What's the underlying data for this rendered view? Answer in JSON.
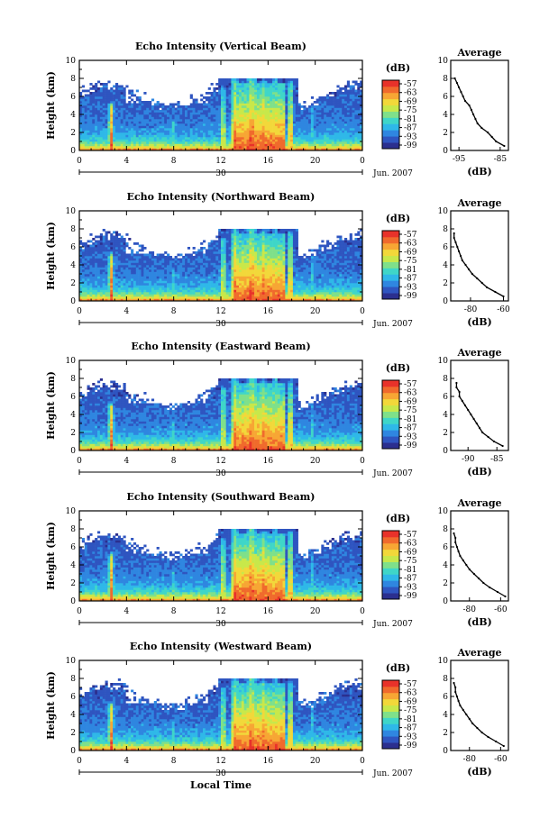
{
  "chart_data": [
    {
      "type": "heatmap",
      "title": "Echo Intensity (Vertical Beam)",
      "ylabel": "Height (km)",
      "ylim": [
        0,
        10
      ],
      "yticks": [
        "0",
        "2",
        "4",
        "6",
        "8",
        "10"
      ],
      "xticks": [
        "0",
        "4",
        "8",
        "12",
        "16",
        "20",
        "0"
      ],
      "date_day": "30",
      "date_month": "Jun. 2007",
      "colorbar": {
        "unit": "(dB)",
        "ticks": [
          "-57",
          "-63",
          "-69",
          "-75",
          "-81",
          "-87",
          "-93",
          "-99"
        ]
      },
      "profile": {
        "title": "Average",
        "xlabel": "(dB)",
        "xticks": [
          "-95",
          "-85"
        ],
        "xlim": [
          -97,
          -83
        ],
        "yticks": [
          "0",
          "2",
          "4",
          "6",
          "8",
          "10"
        ],
        "heights": [
          0.5,
          1,
          1.5,
          2,
          2.5,
          3,
          3.5,
          4,
          4.5,
          5,
          5.5,
          6,
          6.5,
          7,
          7.5,
          8
        ],
        "values": [
          -84,
          -86,
          -87,
          -88,
          -89.5,
          -90.5,
          -91,
          -91.5,
          -92,
          -92.5,
          -93.5,
          -94,
          -94.5,
          -95,
          -95.5,
          -96
        ]
      }
    },
    {
      "type": "heatmap",
      "title": "Echo Intensity (Northward Beam)",
      "ylabel": "Height (km)",
      "ylim": [
        0,
        10
      ],
      "yticks": [
        "0",
        "2",
        "4",
        "6",
        "8",
        "10"
      ],
      "xticks": [
        "0",
        "4",
        "8",
        "12",
        "16",
        "20",
        "0"
      ],
      "date_day": "30",
      "date_month": "Jun. 2007",
      "colorbar": {
        "unit": "(dB)",
        "ticks": [
          "-57",
          "-63",
          "-69",
          "-75",
          "-81",
          "-87",
          "-93",
          "-99"
        ]
      },
      "profile": {
        "title": "Average",
        "xlabel": "(dB)",
        "xticks": [
          "-80",
          "-60"
        ],
        "xlim": [
          -92,
          -57
        ],
        "yticks": [
          "0",
          "2",
          "4",
          "6",
          "8",
          "10"
        ],
        "heights": [
          0.5,
          1,
          1.5,
          2,
          2.5,
          3,
          3.5,
          4,
          4.5,
          5,
          5.5,
          6,
          6.5,
          7,
          7.5
        ],
        "values": [
          -60,
          -65,
          -70,
          -73,
          -76,
          -79,
          -81,
          -83,
          -85,
          -86,
          -87,
          -88,
          -89,
          -90,
          -90
        ]
      }
    },
    {
      "type": "heatmap",
      "title": "Echo Intensity (Eastward Beam)",
      "ylabel": "Height (km)",
      "ylim": [
        0,
        10
      ],
      "yticks": [
        "0",
        "2",
        "4",
        "6",
        "8",
        "10"
      ],
      "xticks": [
        "0",
        "4",
        "8",
        "12",
        "16",
        "20",
        "0"
      ],
      "date_day": "30",
      "date_month": "Jun. 2007",
      "colorbar": {
        "unit": "(dB)",
        "ticks": [
          "-57",
          "-63",
          "-69",
          "-75",
          "-81",
          "-87",
          "-93",
          "-99"
        ]
      },
      "profile": {
        "title": "Average",
        "xlabel": "(dB)",
        "xticks": [
          "-90",
          "-85"
        ],
        "xlim": [
          -93,
          -83
        ],
        "yticks": [
          "0",
          "2",
          "4",
          "6",
          "8",
          "10"
        ],
        "heights": [
          0.5,
          1,
          1.5,
          2,
          2.5,
          3,
          3.5,
          4,
          4.5,
          5,
          5.5,
          6,
          6.5,
          7,
          7.5
        ],
        "values": [
          -84,
          -85.5,
          -86.5,
          -87.5,
          -88,
          -88.5,
          -89,
          -89.5,
          -90,
          -90.5,
          -91,
          -91.5,
          -91.5,
          -92,
          -92
        ]
      }
    },
    {
      "type": "heatmap",
      "title": "Echo Intensity (Southward Beam)",
      "ylabel": "Height (km)",
      "ylim": [
        0,
        10
      ],
      "yticks": [
        "0",
        "2",
        "4",
        "6",
        "8",
        "10"
      ],
      "xticks": [
        "0",
        "4",
        "8",
        "12",
        "16",
        "20",
        "0"
      ],
      "date_day": "30",
      "date_month": "Jun. 2007",
      "colorbar": {
        "unit": "(dB)",
        "ticks": [
          "-57",
          "-63",
          "-69",
          "-75",
          "-81",
          "-87",
          "-93",
          "-99"
        ]
      },
      "profile": {
        "title": "Average",
        "xlabel": "(dB)",
        "xticks": [
          "-80",
          "-60"
        ],
        "xlim": [
          -92,
          -55
        ],
        "yticks": [
          "0",
          "2",
          "4",
          "6",
          "8",
          "10"
        ],
        "heights": [
          0.5,
          1,
          1.5,
          2,
          2.5,
          3,
          3.5,
          4,
          4.5,
          5,
          5.5,
          6,
          6.5,
          7,
          7.5
        ],
        "values": [
          -57,
          -62,
          -67,
          -71,
          -74,
          -77,
          -80,
          -82,
          -84,
          -86,
          -87,
          -88,
          -89,
          -89,
          -90
        ]
      }
    },
    {
      "type": "heatmap",
      "title": "Echo Intensity (Westward Beam)",
      "ylabel": "Height (km)",
      "ylim": [
        0,
        10
      ],
      "yticks": [
        "0",
        "2",
        "4",
        "6",
        "8",
        "10"
      ],
      "xticks": [
        "0",
        "4",
        "8",
        "12",
        "16",
        "20",
        "0"
      ],
      "date_day": "30",
      "date_month": "Jun. 2007",
      "xlabel": "Local Time",
      "colorbar": {
        "unit": "(dB)",
        "ticks": [
          "-57",
          "-63",
          "-69",
          "-75",
          "-81",
          "-87",
          "-93",
          "-99"
        ]
      },
      "profile": {
        "title": "Average",
        "xlabel": "(dB)",
        "xticks": [
          "-80",
          "-60"
        ],
        "xlim": [
          -92,
          -55
        ],
        "yticks": [
          "0",
          "2",
          "4",
          "6",
          "8",
          "10"
        ],
        "heights": [
          0.5,
          1,
          1.5,
          2,
          2.5,
          3,
          3.5,
          4,
          4.5,
          5,
          5.5,
          6,
          6.5,
          7,
          7.5
        ],
        "values": [
          -58,
          -63,
          -68,
          -72,
          -75,
          -78,
          -80,
          -82,
          -84,
          -86,
          -87,
          -88,
          -89,
          -89,
          -90
        ]
      }
    }
  ],
  "colors": {
    "scale": [
      "#2b2f8f",
      "#2f55c0",
      "#2f86e0",
      "#2fb8e8",
      "#3fd6c8",
      "#7fe08a",
      "#c8e84a",
      "#f2d83a",
      "#f7a634",
      "#f06a2c",
      "#e8322a"
    ],
    "empty": "#ffffff"
  }
}
